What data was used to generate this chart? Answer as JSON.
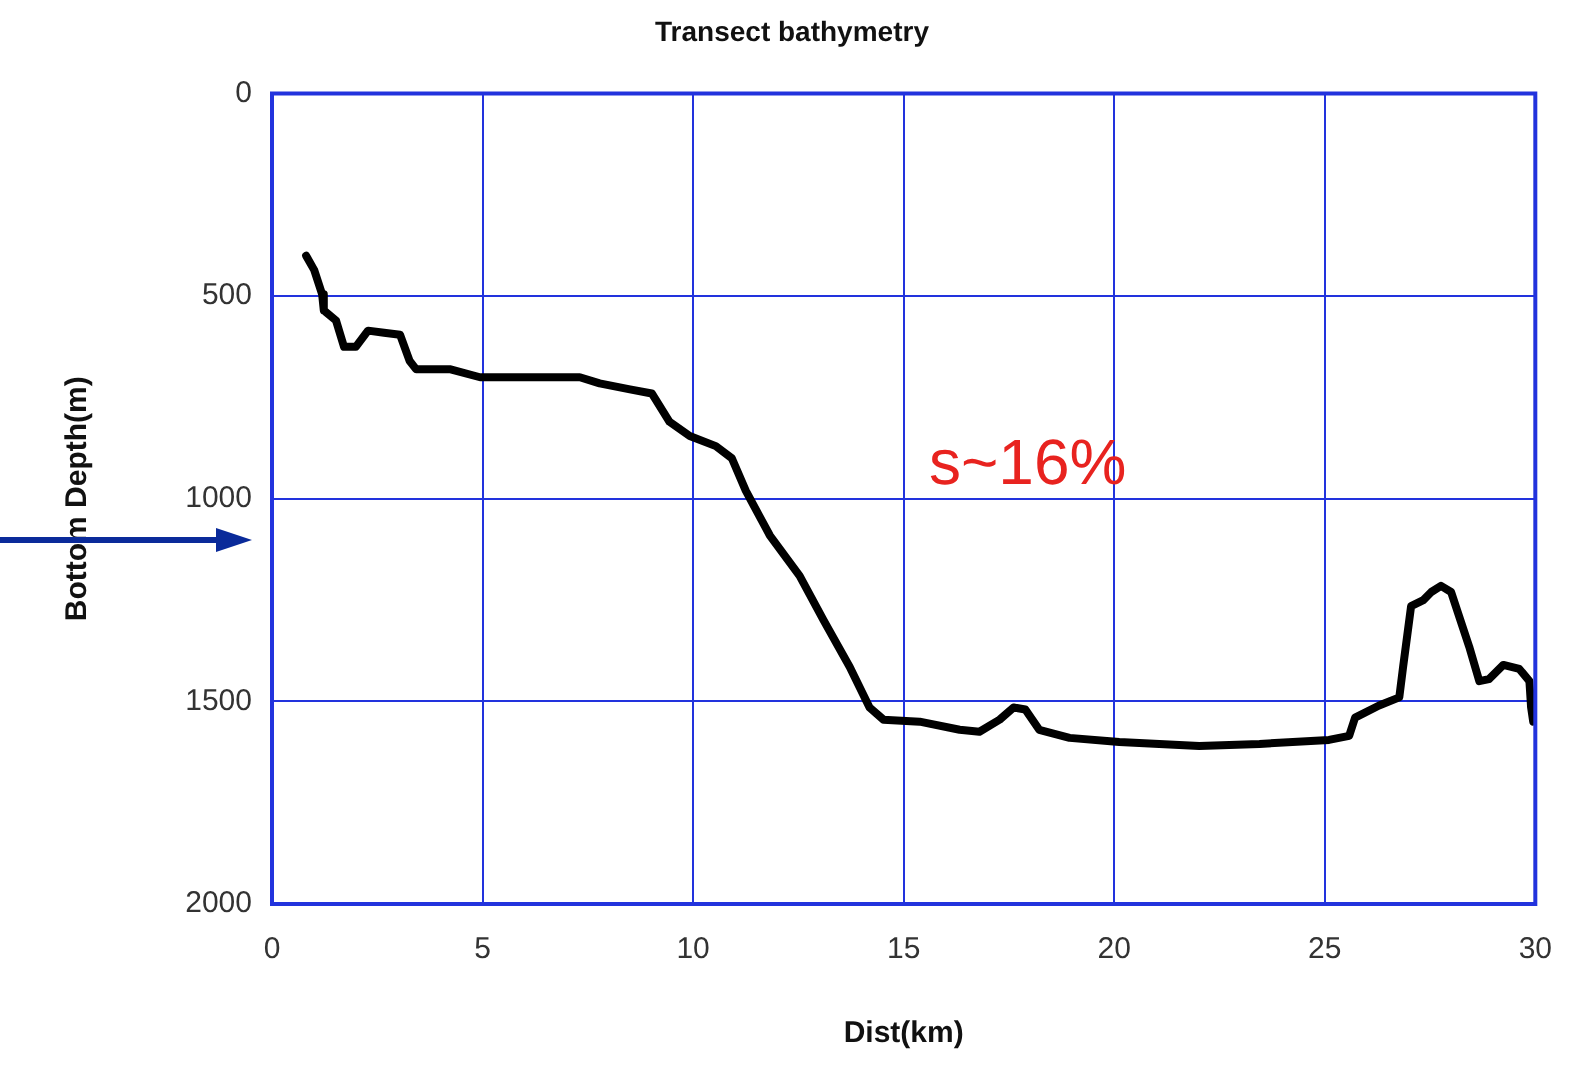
{
  "chart_data": {
    "type": "line",
    "title": "Transect bathymetry",
    "xlabel": "Dist(km)",
    "ylabel": "Bottom Depth(m)",
    "x": [
      0.81,
      1.0,
      1.19,
      1.23,
      1.52,
      1.71,
      1.99,
      2.28,
      2.66,
      3.04,
      3.27,
      3.42,
      4.22,
      4.94,
      7.31,
      7.78,
      8.5,
      9.02,
      9.44,
      9.92,
      10.54,
      10.92,
      11.25,
      11.82,
      12.53,
      13.1,
      13.72,
      14.19,
      14.52,
      15.38,
      16.33,
      16.8,
      17.28,
      17.61,
      17.89,
      18.22,
      18.94,
      20.12,
      22.02,
      23.45,
      25.1,
      25.58,
      25.72,
      26.29,
      26.77,
      26.86,
      27.05,
      27.34,
      27.53,
      27.76,
      28.0,
      28.19,
      28.43,
      28.67,
      28.9,
      29.24,
      29.62,
      29.86,
      29.9,
      29.95
    ],
    "series": [
      {
        "color": "#000000",
        "values": [
          400,
          435,
          495,
          535,
          560,
          625,
          625,
          585,
          590,
          595,
          660,
          680,
          680,
          700,
          700,
          715,
          730,
          740,
          810,
          845,
          870,
          900,
          980,
          1090,
          1190,
          1300,
          1415,
          1515,
          1545,
          1550,
          1570,
          1575,
          1545,
          1515,
          1520,
          1570,
          1590,
          1600,
          1610,
          1605,
          1595,
          1585,
          1540,
          1510,
          1490,
          1415,
          1265,
          1250,
          1230,
          1215,
          1230,
          1290,
          1365,
          1450,
          1445,
          1410,
          1420,
          1450,
          1515,
          1550
        ]
      }
    ],
    "xlim": [
      0,
      30
    ],
    "xticks": [
      0,
      5,
      10,
      15,
      20,
      25,
      30
    ],
    "ylim": [
      2000,
      0
    ],
    "yticks": [
      0,
      500,
      1000,
      1500,
      2000
    ],
    "grid": true,
    "legend": false,
    "marker": "none",
    "line_style": "solid",
    "annotations": [
      "s~16%"
    ]
  }
}
